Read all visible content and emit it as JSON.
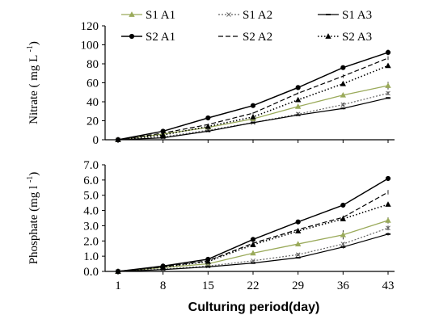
{
  "chart_data": [
    {
      "type": "line",
      "ylabel": "Nitrate ( mg L",
      "ylabel_sup": "-1",
      "ylabel_close": ")",
      "ylim": [
        0,
        120
      ],
      "yticks": [
        "0",
        "20",
        "40",
        "60",
        "80",
        "100",
        "120"
      ],
      "x": [
        "1",
        "8",
        "15",
        "22",
        "29",
        "36",
        "43"
      ],
      "legend_placement": "top",
      "series": [
        {
          "name": "S1 A1",
          "style": "solid-green",
          "values": [
            0,
            6,
            13,
            22,
            35,
            47,
            57
          ],
          "err": [
            0,
            1,
            1,
            1,
            2,
            2,
            4
          ]
        },
        {
          "name": "S1 A2",
          "style": "dotted-open",
          "values": [
            0,
            3,
            10,
            18,
            27,
            37,
            49
          ],
          "err": [
            0,
            1,
            1,
            1,
            2,
            2,
            2
          ]
        },
        {
          "name": "S1 A3",
          "style": "solid-dash",
          "values": [
            0,
            2,
            9,
            18,
            26,
            33,
            44
          ],
          "err": [
            0,
            1,
            1,
            1,
            1,
            1,
            1
          ]
        },
        {
          "name": "S2 A1",
          "style": "solid-filled",
          "values": [
            0,
            9,
            23,
            36,
            55,
            76,
            92
          ],
          "err": [
            0,
            1,
            1,
            1,
            1,
            2,
            3
          ]
        },
        {
          "name": "S2 A2",
          "style": "dashed",
          "values": [
            0,
            7,
            16,
            28,
            49,
            67,
            86
          ],
          "err": [
            0,
            1,
            1,
            1,
            1,
            2,
            2
          ]
        },
        {
          "name": "S2 A3",
          "style": "dotted-filled",
          "values": [
            0,
            5,
            14,
            24,
            42,
            59,
            78
          ],
          "err": [
            0,
            1,
            1,
            1,
            1,
            2,
            2
          ]
        }
      ]
    },
    {
      "type": "line",
      "ylabel": "Phosphate (mg l",
      "ylabel_sup": "-1",
      "ylabel_close": ")",
      "ylim": [
        0,
        7
      ],
      "yticks": [
        "0.0",
        "1.0",
        "2.0",
        "3.0",
        "4.0",
        "5.0",
        "6.0",
        "7.0"
      ],
      "x": [
        "1",
        "8",
        "15",
        "22",
        "29",
        "36",
        "43"
      ],
      "xlabel": "Culturing period(day)",
      "series": [
        {
          "name": "S1 A1",
          "values": [
            0,
            0.25,
            0.5,
            1.2,
            1.8,
            2.4,
            3.35
          ],
          "err": [
            0,
            0.05,
            0.05,
            0.08,
            0.1,
            0.3,
            0.2
          ]
        },
        {
          "name": "S1 A2",
          "values": [
            0,
            0.15,
            0.35,
            0.7,
            1.1,
            1.8,
            2.85
          ],
          "err": [
            0,
            0.05,
            0.05,
            0.05,
            0.1,
            0.1,
            0.15
          ]
        },
        {
          "name": "S1 A3",
          "values": [
            0,
            0.12,
            0.3,
            0.55,
            0.9,
            1.6,
            2.45
          ],
          "err": [
            0,
            0.03,
            0.04,
            0.05,
            0.05,
            0.1,
            0.1
          ]
        },
        {
          "name": "S2 A1",
          "values": [
            0,
            0.35,
            0.8,
            2.1,
            3.25,
            4.35,
            6.1
          ],
          "err": [
            0,
            0.05,
            0.05,
            0.08,
            0.1,
            0.15,
            0.15
          ]
        },
        {
          "name": "S2 A2",
          "values": [
            0,
            0.3,
            0.7,
            1.85,
            2.75,
            3.55,
            5.2
          ],
          "err": [
            0,
            0.05,
            0.05,
            0.08,
            0.1,
            0.12,
            0.15
          ]
        },
        {
          "name": "S2 A3",
          "values": [
            0,
            0.28,
            0.65,
            1.75,
            2.65,
            3.45,
            4.4
          ],
          "err": [
            0,
            0.05,
            0.05,
            0.08,
            0.1,
            0.1,
            0.12
          ]
        }
      ]
    }
  ]
}
